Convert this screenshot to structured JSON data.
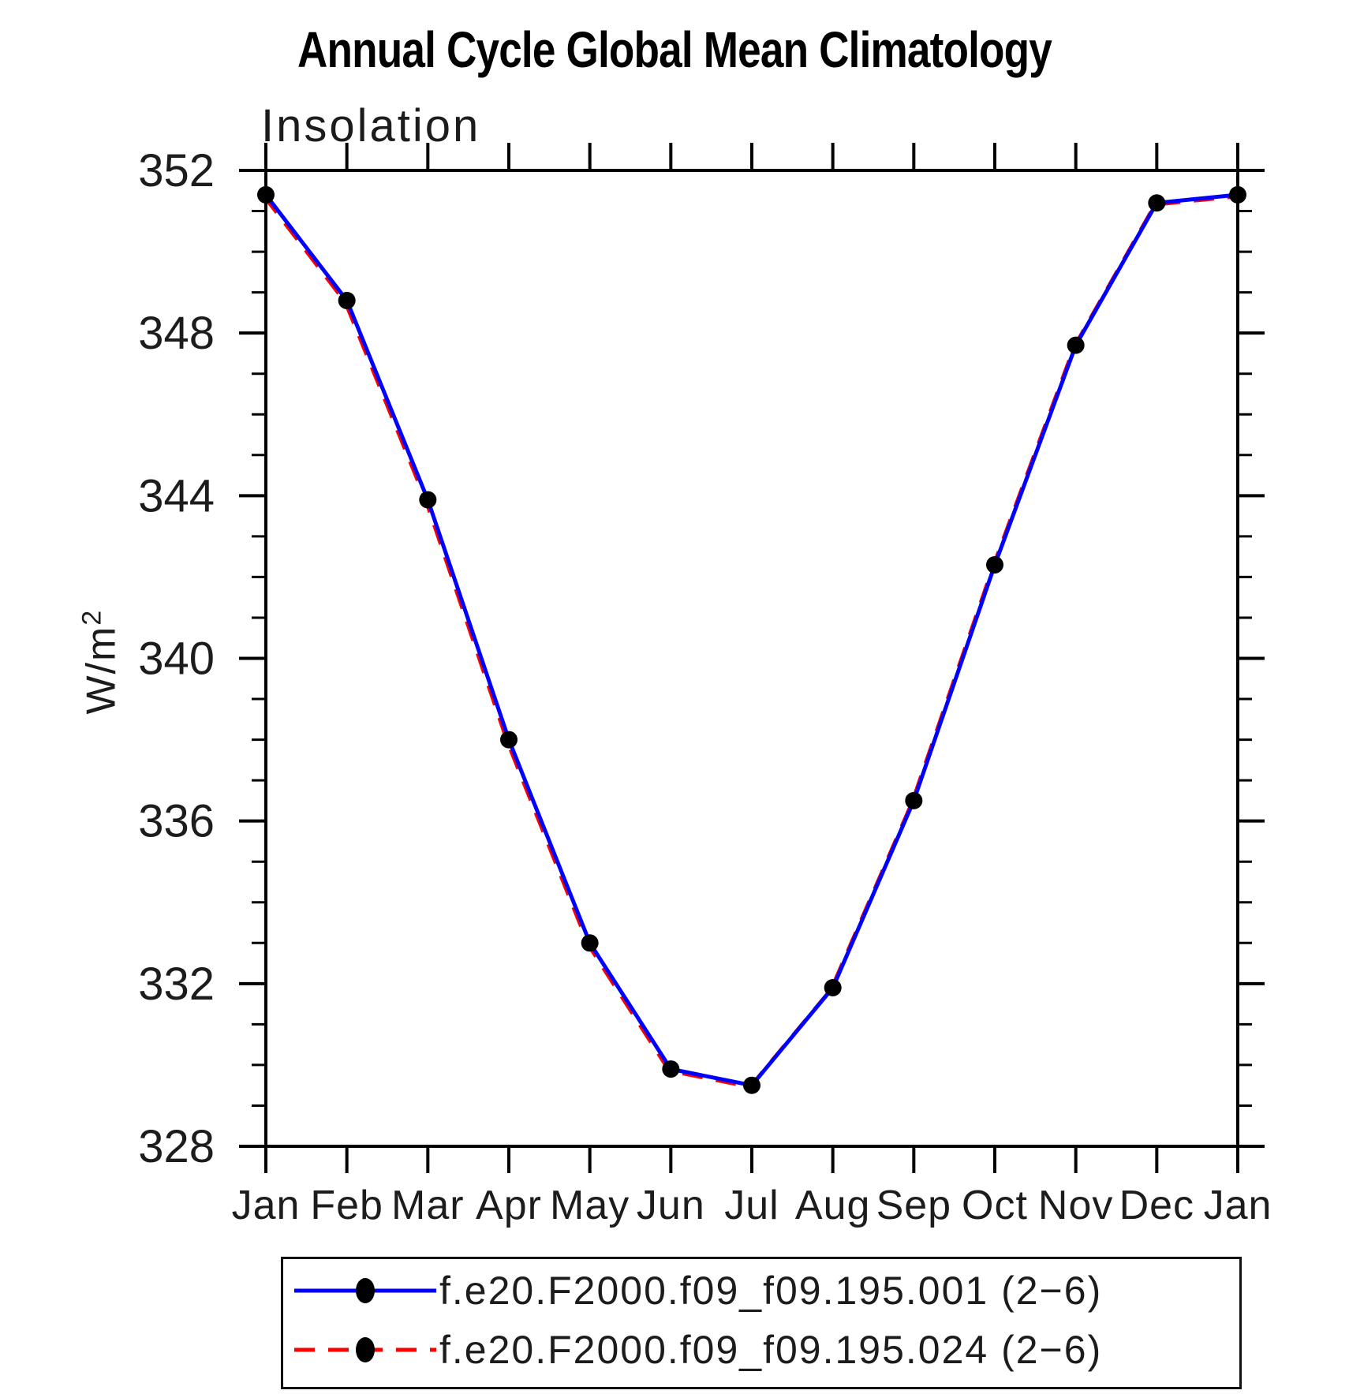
{
  "chart_data": {
    "type": "line",
    "title": "Annual Cycle Global Mean Climatology",
    "subtitle": "Insolation",
    "ylabel_base": "W/m",
    "ylabel_exponent": "2",
    "categories": [
      "Jan",
      "Feb",
      "Mar",
      "Apr",
      "May",
      "Jun",
      "Jul",
      "Aug",
      "Sep",
      "Oct",
      "Nov",
      "Dec",
      "Jan"
    ],
    "series": [
      {
        "name": "f.e20.F2000.f09_f09.195.001 (2−6)",
        "color": "#0000ff",
        "line_style": "solid",
        "marker": "filled-circle",
        "marker_color": "#000000",
        "values": [
          351.4,
          348.8,
          343.9,
          338.0,
          333.0,
          329.9,
          329.5,
          331.9,
          336.5,
          342.3,
          347.7,
          351.2,
          351.4
        ]
      },
      {
        "name": "f.e20.F2000.f09_f09.195.024 (2−6)",
        "color": "#ff0000",
        "line_style": "dashed",
        "marker": "filled-circle",
        "marker_color": "#000000",
        "values": [
          351.4,
          348.8,
          343.9,
          338.0,
          333.0,
          329.9,
          329.5,
          331.9,
          336.5,
          342.3,
          347.7,
          351.2,
          351.4
        ]
      }
    ],
    "ylim": [
      328,
      352
    ],
    "y_major_ticks": [
      352,
      348,
      344,
      340,
      336,
      332,
      328
    ],
    "y_minor_step": 1,
    "grid": false,
    "legend_position": "bottom"
  }
}
